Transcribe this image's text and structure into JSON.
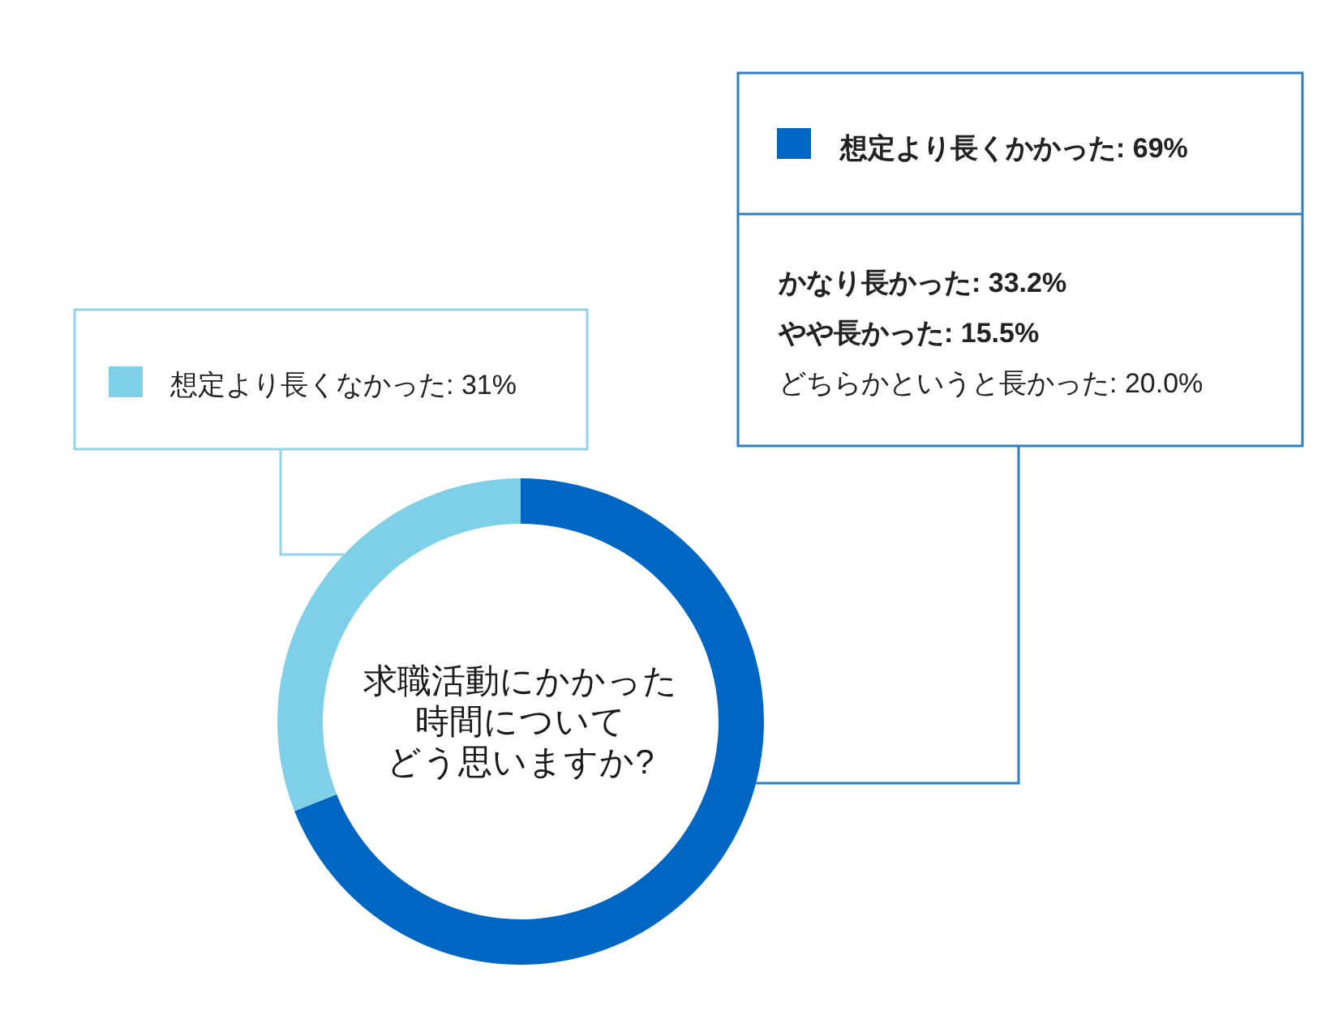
{
  "chart_data": {
    "type": "donut",
    "title": "求職活動にかかった時間についてどう思いますか?",
    "categories": [
      "想定より長くかかった",
      "想定より長くなかった"
    ],
    "values": [
      69,
      31
    ],
    "colors": [
      "#0066c4",
      "#7dd0e8"
    ],
    "value_labels": [
      "69%",
      "31%"
    ],
    "legend": "top",
    "annotations": [
      "かなり長かった: 33.2%",
      "やや長かった: 15.5%",
      "どちらかというと長かった: 20.0%"
    ]
  }
}
